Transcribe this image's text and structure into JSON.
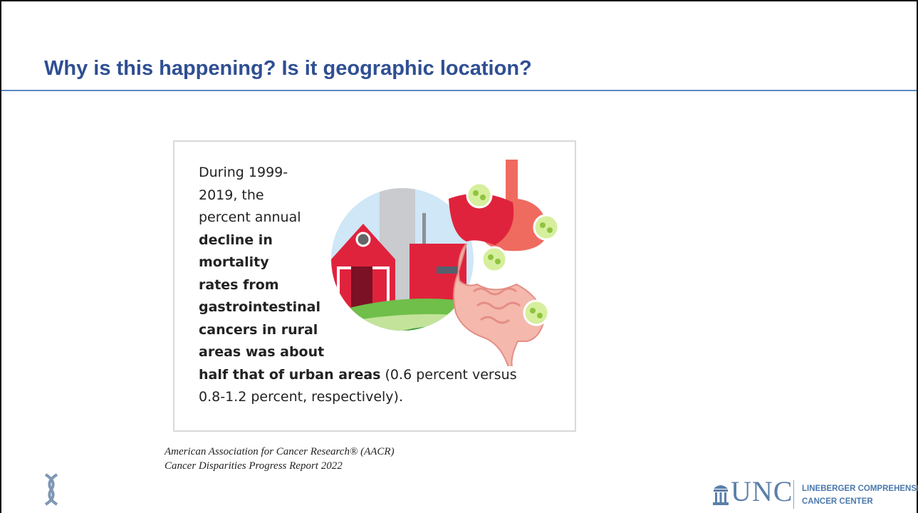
{
  "header": {
    "title": "Why is this happening? Is it geographic location?"
  },
  "infographic": {
    "lines": [
      [
        {
          "text": "During 1999-",
          "bold": false
        }
      ],
      [
        {
          "text": "2019, the",
          "bold": false
        }
      ],
      [
        {
          "text": "percent annual",
          "bold": false
        }
      ],
      [
        {
          "text": "decline in",
          "bold": true
        }
      ],
      [
        {
          "text": "mortality",
          "bold": true
        }
      ],
      [
        {
          "text": "rates from",
          "bold": true
        }
      ],
      [
        {
          "text": "gastrointestinal",
          "bold": true
        }
      ],
      [
        {
          "text": "cancers in rural",
          "bold": true
        }
      ],
      [
        {
          "text": "areas was about",
          "bold": true
        }
      ],
      [
        {
          "text": "half that of urban areas",
          "bold": true
        },
        {
          "text": " (0.6 percent versus",
          "bold": false
        }
      ],
      [
        {
          "text": "0.8-1.2 percent, respectively).",
          "bold": false
        }
      ]
    ]
  },
  "citation": [
    "American Association for Cancer Research® (AACR)",
    "Cancer Disparities Progress Report 2022"
  ],
  "logo": {
    "wordmark": "UNC",
    "lines": [
      "LINEBERGER COMPREHENSIVE",
      "CANCER CENTER"
    ]
  }
}
